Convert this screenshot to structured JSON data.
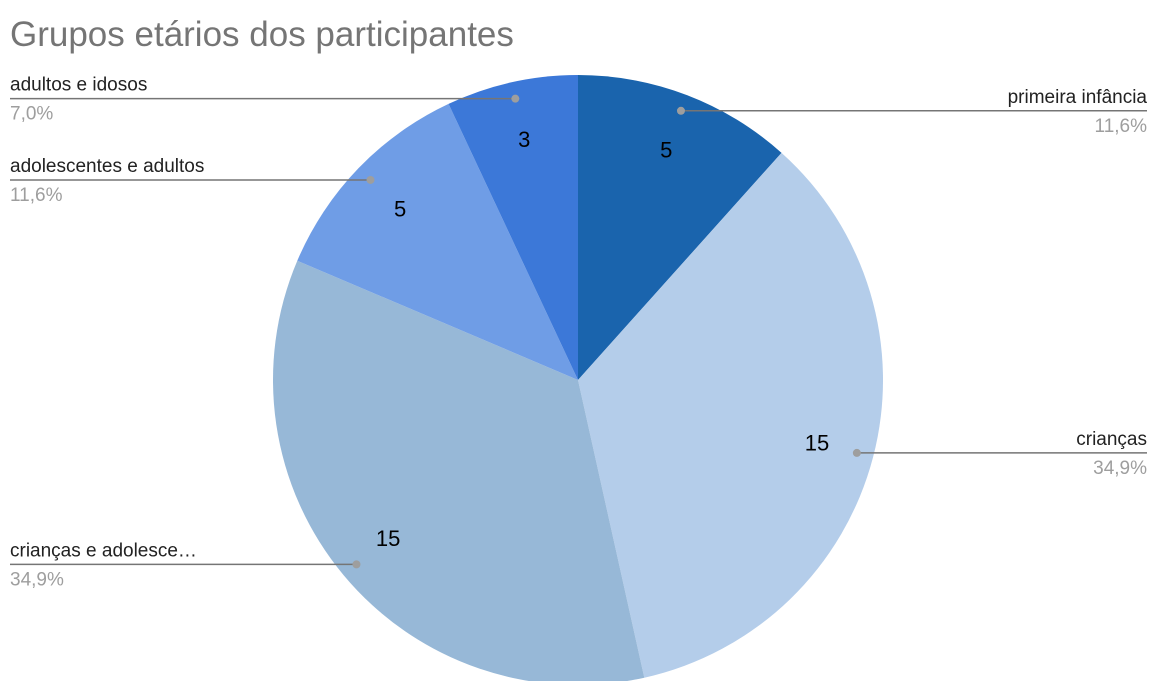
{
  "chart_data": {
    "type": "pie",
    "title": "Grupos etários dos participantes",
    "categories": [
      "primeira infância",
      "crianças",
      "crianças e adolesce…",
      "adolescentes e adultos",
      "adultos e idosos"
    ],
    "values": [
      5,
      15,
      15,
      5,
      3
    ],
    "percent_labels": [
      "11,6%",
      "34,9%",
      "34,9%",
      "11,6%",
      "7,0%"
    ],
    "colors": [
      "#1a64ad",
      "#b4cdea",
      "#97b8d7",
      "#6f9de6",
      "#3c78d8"
    ]
  }
}
